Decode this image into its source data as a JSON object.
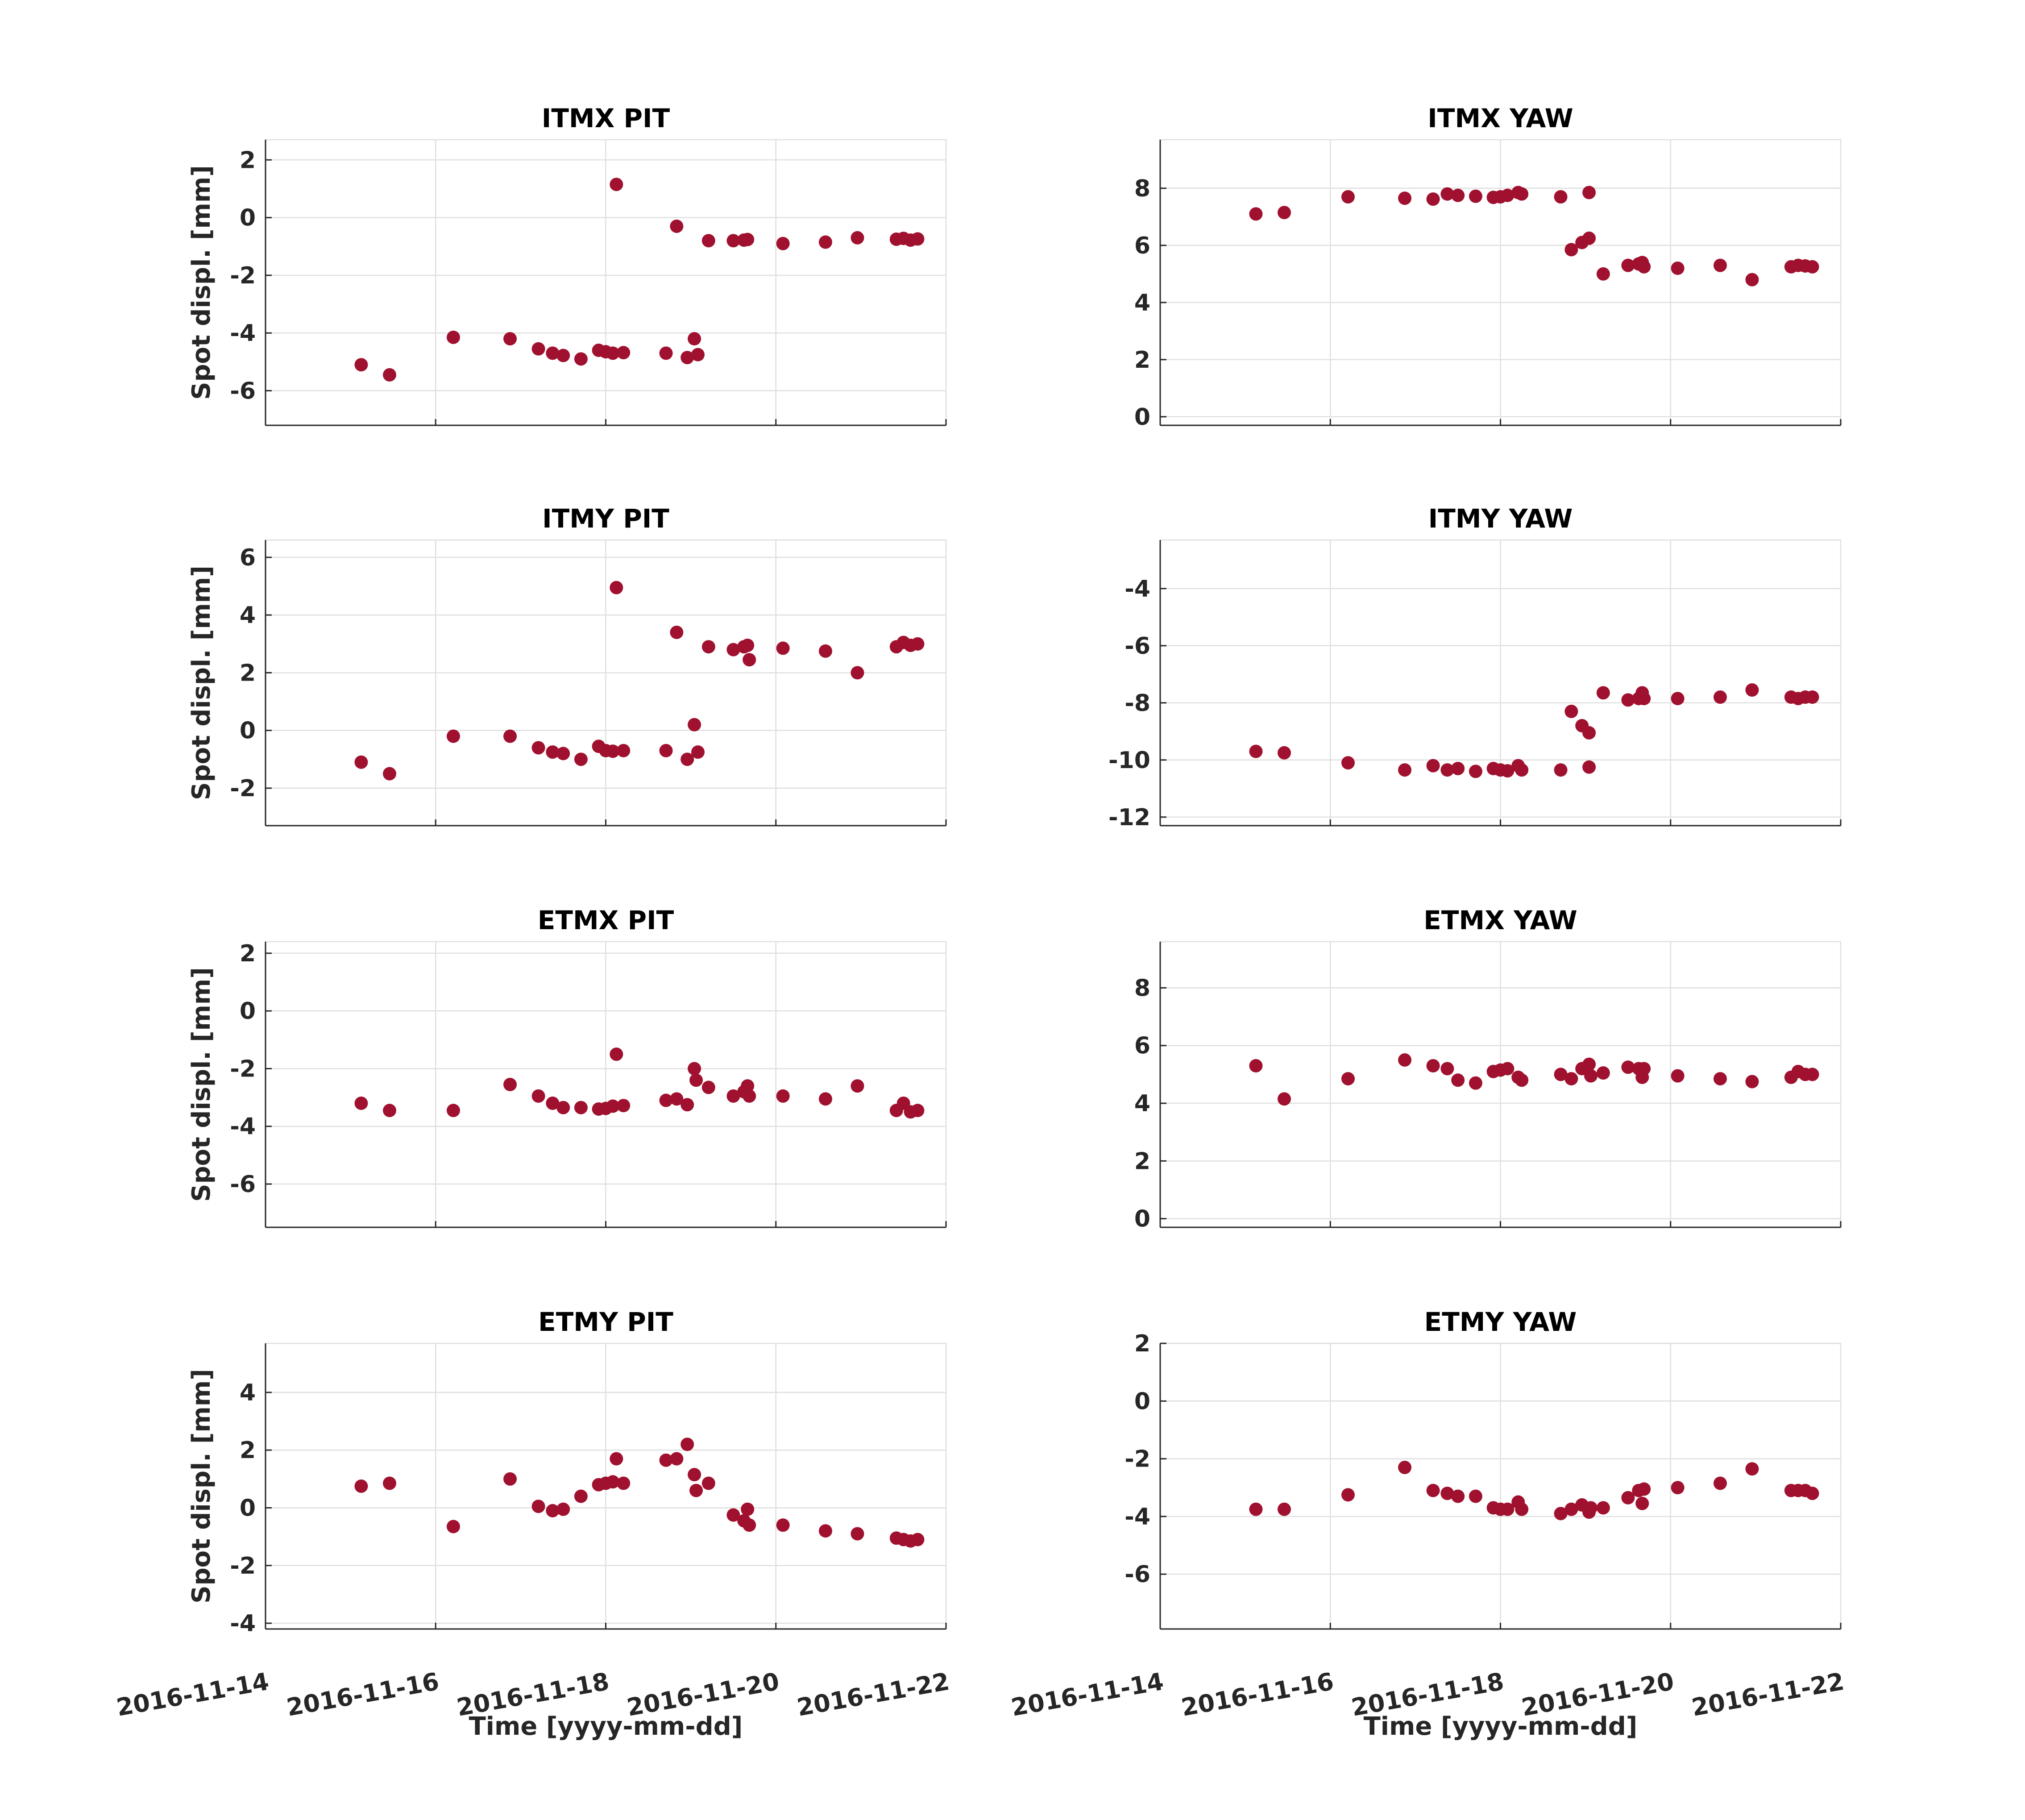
{
  "figure": {
    "marker_color": "#a0112f",
    "axis_color": "#262626",
    "grid_color": "#dfdfdf"
  },
  "chart_data": [
    {
      "type": "scatter",
      "title": "ITMX PIT",
      "ylabel": "Spot displ. [mm]",
      "xlabel": "",
      "xlim": [
        "2016-11-14",
        "2016-11-22"
      ],
      "xticks": [
        "2016-11-16",
        "2016-11-18",
        "2016-11-20",
        "2016-11-22"
      ],
      "ylim": [
        -7.2,
        2.7
      ],
      "yticks": [
        -6,
        -4,
        -2,
        0,
        2
      ],
      "grid": true,
      "points": [
        [
          "2016-11-15 03:00",
          -5.1
        ],
        [
          "2016-11-15 11:00",
          -5.45
        ],
        [
          "2016-11-16 05:00",
          -4.15
        ],
        [
          "2016-11-16 21:00",
          -4.2
        ],
        [
          "2016-11-17 05:00",
          -4.55
        ],
        [
          "2016-11-17 09:00",
          -4.7
        ],
        [
          "2016-11-17 12:00",
          -4.78
        ],
        [
          "2016-11-17 17:00",
          -4.9
        ],
        [
          "2016-11-17 22:00",
          -4.6
        ],
        [
          "2016-11-18 00:00",
          -4.65
        ],
        [
          "2016-11-18 02:00",
          -4.7
        ],
        [
          "2016-11-18 05:00",
          -4.68
        ],
        [
          "2016-11-18 03:00",
          1.15
        ],
        [
          "2016-11-18 17:00",
          -4.7
        ],
        [
          "2016-11-18 23:00",
          -4.85
        ],
        [
          "2016-11-19 02:00",
          -4.75
        ],
        [
          "2016-11-19 01:00",
          -4.2
        ],
        [
          "2016-11-18 20:00",
          -0.3
        ],
        [
          "2016-11-19 05:00",
          -0.8
        ],
        [
          "2016-11-19 12:00",
          -0.8
        ],
        [
          "2016-11-19 15:00",
          -0.78
        ],
        [
          "2016-11-19 16:00",
          -0.76
        ],
        [
          "2016-11-20 02:00",
          -0.9
        ],
        [
          "2016-11-20 14:00",
          -0.85
        ],
        [
          "2016-11-20 23:00",
          -0.7
        ],
        [
          "2016-11-21 10:00",
          -0.75
        ],
        [
          "2016-11-21 12:00",
          -0.72
        ],
        [
          "2016-11-21 14:00",
          -0.78
        ],
        [
          "2016-11-21 16:00",
          -0.74
        ]
      ]
    },
    {
      "type": "scatter",
      "title": "ITMX YAW",
      "ylabel": "",
      "xlabel": "",
      "xlim": [
        "2016-11-14",
        "2016-11-22"
      ],
      "xticks": [
        "2016-11-16",
        "2016-11-18",
        "2016-11-20",
        "2016-11-22"
      ],
      "ylim": [
        -0.3,
        9.7
      ],
      "yticks": [
        0,
        2,
        4,
        6,
        8
      ],
      "grid": true,
      "points": [
        [
          "2016-11-15 03:00",
          7.1
        ],
        [
          "2016-11-15 11:00",
          7.15
        ],
        [
          "2016-11-16 05:00",
          7.7
        ],
        [
          "2016-11-16 21:00",
          7.65
        ],
        [
          "2016-11-17 05:00",
          7.62
        ],
        [
          "2016-11-17 09:00",
          7.8
        ],
        [
          "2016-11-17 12:00",
          7.75
        ],
        [
          "2016-11-17 17:00",
          7.72
        ],
        [
          "2016-11-17 22:00",
          7.68
        ],
        [
          "2016-11-18 00:00",
          7.7
        ],
        [
          "2016-11-18 02:00",
          7.75
        ],
        [
          "2016-11-18 05:00",
          7.85
        ],
        [
          "2016-11-18 06:00",
          7.8
        ],
        [
          "2016-11-18 17:00",
          7.7
        ],
        [
          "2016-11-19 01:00",
          7.85
        ],
        [
          "2016-11-18 20:00",
          5.85
        ],
        [
          "2016-11-18 23:00",
          6.1
        ],
        [
          "2016-11-19 01:00",
          6.25
        ],
        [
          "2016-11-19 05:00",
          5.0
        ],
        [
          "2016-11-19 12:00",
          5.3
        ],
        [
          "2016-11-19 15:00",
          5.35
        ],
        [
          "2016-11-19 16:00",
          5.4
        ],
        [
          "2016-11-19 16:30",
          5.25
        ],
        [
          "2016-11-20 02:00",
          5.2
        ],
        [
          "2016-11-20 14:00",
          5.3
        ],
        [
          "2016-11-20 23:00",
          4.8
        ],
        [
          "2016-11-21 10:00",
          5.25
        ],
        [
          "2016-11-21 12:00",
          5.3
        ],
        [
          "2016-11-21 14:00",
          5.28
        ],
        [
          "2016-11-21 16:00",
          5.25
        ]
      ]
    },
    {
      "type": "scatter",
      "title": "ITMY PIT",
      "ylabel": "Spot displ. [mm]",
      "xlabel": "",
      "xlim": [
        "2016-11-14",
        "2016-11-22"
      ],
      "xticks": [
        "2016-11-16",
        "2016-11-18",
        "2016-11-20",
        "2016-11-22"
      ],
      "ylim": [
        -3.3,
        6.6
      ],
      "yticks": [
        -2,
        0,
        2,
        4,
        6
      ],
      "grid": true,
      "points": [
        [
          "2016-11-15 03:00",
          -1.1
        ],
        [
          "2016-11-15 11:00",
          -1.5
        ],
        [
          "2016-11-16 05:00",
          -0.2
        ],
        [
          "2016-11-16 21:00",
          -0.2
        ],
        [
          "2016-11-17 05:00",
          -0.6
        ],
        [
          "2016-11-17 09:00",
          -0.75
        ],
        [
          "2016-11-17 12:00",
          -0.8
        ],
        [
          "2016-11-17 17:00",
          -1.0
        ],
        [
          "2016-11-17 22:00",
          -0.55
        ],
        [
          "2016-11-18 00:00",
          -0.7
        ],
        [
          "2016-11-18 02:00",
          -0.72
        ],
        [
          "2016-11-18 05:00",
          -0.7
        ],
        [
          "2016-11-18 03:00",
          4.95
        ],
        [
          "2016-11-18 17:00",
          -0.7
        ],
        [
          "2016-11-18 23:00",
          -1.0
        ],
        [
          "2016-11-19 02:00",
          -0.75
        ],
        [
          "2016-11-19 01:00",
          0.2
        ],
        [
          "2016-11-18 20:00",
          3.4
        ],
        [
          "2016-11-19 05:00",
          2.9
        ],
        [
          "2016-11-19 12:00",
          2.8
        ],
        [
          "2016-11-19 15:00",
          2.9
        ],
        [
          "2016-11-19 16:00",
          2.95
        ],
        [
          "2016-11-19 16:30",
          2.45
        ],
        [
          "2016-11-20 02:00",
          2.85
        ],
        [
          "2016-11-20 14:00",
          2.75
        ],
        [
          "2016-11-20 23:00",
          2.0
        ],
        [
          "2016-11-21 10:00",
          2.9
        ],
        [
          "2016-11-21 12:00",
          3.05
        ],
        [
          "2016-11-21 14:00",
          2.95
        ],
        [
          "2016-11-21 16:00",
          3.0
        ]
      ]
    },
    {
      "type": "scatter",
      "title": "ITMY YAW",
      "ylabel": "",
      "xlabel": "",
      "xlim": [
        "2016-11-14",
        "2016-11-22"
      ],
      "xticks": [
        "2016-11-16",
        "2016-11-18",
        "2016-11-20",
        "2016-11-22"
      ],
      "ylim": [
        -12.3,
        -2.3
      ],
      "yticks": [
        -12,
        -10,
        -8,
        -6,
        -4
      ],
      "grid": true,
      "points": [
        [
          "2016-11-15 03:00",
          -9.7
        ],
        [
          "2016-11-15 11:00",
          -9.75
        ],
        [
          "2016-11-16 05:00",
          -10.1
        ],
        [
          "2016-11-16 21:00",
          -10.35
        ],
        [
          "2016-11-17 05:00",
          -10.2
        ],
        [
          "2016-11-17 09:00",
          -10.35
        ],
        [
          "2016-11-17 12:00",
          -10.3
        ],
        [
          "2016-11-17 17:00",
          -10.4
        ],
        [
          "2016-11-17 22:00",
          -10.3
        ],
        [
          "2016-11-18 00:00",
          -10.35
        ],
        [
          "2016-11-18 02:00",
          -10.38
        ],
        [
          "2016-11-18 05:00",
          -10.2
        ],
        [
          "2016-11-18 06:00",
          -10.35
        ],
        [
          "2016-11-18 17:00",
          -10.35
        ],
        [
          "2016-11-19 01:00",
          -10.25
        ],
        [
          "2016-11-18 20:00",
          -8.3
        ],
        [
          "2016-11-18 23:00",
          -8.8
        ],
        [
          "2016-11-19 01:00",
          -9.05
        ],
        [
          "2016-11-19 05:00",
          -7.65
        ],
        [
          "2016-11-19 12:00",
          -7.9
        ],
        [
          "2016-11-19 15:00",
          -7.85
        ],
        [
          "2016-11-19 16:00",
          -7.65
        ],
        [
          "2016-11-19 16:30",
          -7.85
        ],
        [
          "2016-11-20 02:00",
          -7.85
        ],
        [
          "2016-11-20 14:00",
          -7.8
        ],
        [
          "2016-11-20 23:00",
          -7.55
        ],
        [
          "2016-11-21 10:00",
          -7.8
        ],
        [
          "2016-11-21 12:00",
          -7.85
        ],
        [
          "2016-11-21 14:00",
          -7.8
        ],
        [
          "2016-11-21 16:00",
          -7.8
        ]
      ]
    },
    {
      "type": "scatter",
      "title": "ETMX PIT",
      "ylabel": "Spot displ. [mm]",
      "xlabel": "",
      "xlim": [
        "2016-11-14",
        "2016-11-22"
      ],
      "xticks": [
        "2016-11-16",
        "2016-11-18",
        "2016-11-20",
        "2016-11-22"
      ],
      "ylim": [
        -7.5,
        2.4
      ],
      "yticks": [
        -6,
        -4,
        -2,
        0,
        2
      ],
      "grid": true,
      "points": [
        [
          "2016-11-15 03:00",
          -3.2
        ],
        [
          "2016-11-15 11:00",
          -3.45
        ],
        [
          "2016-11-16 05:00",
          -3.45
        ],
        [
          "2016-11-16 21:00",
          -2.55
        ],
        [
          "2016-11-17 05:00",
          -2.95
        ],
        [
          "2016-11-17 09:00",
          -3.2
        ],
        [
          "2016-11-17 12:00",
          -3.35
        ],
        [
          "2016-11-17 17:00",
          -3.35
        ],
        [
          "2016-11-17 22:00",
          -3.4
        ],
        [
          "2016-11-18 00:00",
          -3.38
        ],
        [
          "2016-11-18 02:00",
          -3.3
        ],
        [
          "2016-11-18 05:00",
          -3.28
        ],
        [
          "2016-11-18 03:00",
          -1.5
        ],
        [
          "2016-11-18 17:00",
          -3.1
        ],
        [
          "2016-11-18 20:00",
          -3.05
        ],
        [
          "2016-11-18 23:00",
          -3.25
        ],
        [
          "2016-11-19 01:00",
          -2.0
        ],
        [
          "2016-11-19 01:30",
          -2.4
        ],
        [
          "2016-11-19 05:00",
          -2.65
        ],
        [
          "2016-11-19 12:00",
          -2.95
        ],
        [
          "2016-11-19 15:00",
          -2.8
        ],
        [
          "2016-11-19 16:00",
          -2.6
        ],
        [
          "2016-11-19 16:30",
          -2.95
        ],
        [
          "2016-11-20 02:00",
          -2.95
        ],
        [
          "2016-11-20 14:00",
          -3.05
        ],
        [
          "2016-11-20 23:00",
          -2.6
        ],
        [
          "2016-11-21 10:00",
          -3.45
        ],
        [
          "2016-11-21 12:00",
          -3.2
        ],
        [
          "2016-11-21 14:00",
          -3.5
        ],
        [
          "2016-11-21 16:00",
          -3.45
        ]
      ]
    },
    {
      "type": "scatter",
      "title": "ETMX YAW",
      "ylabel": "",
      "xlabel": "",
      "xlim": [
        "2016-11-14",
        "2016-11-22"
      ],
      "xticks": [
        "2016-11-16",
        "2016-11-18",
        "2016-11-20",
        "2016-11-22"
      ],
      "ylim": [
        -0.3,
        9.6
      ],
      "yticks": [
        0,
        2,
        4,
        6,
        8
      ],
      "grid": true,
      "points": [
        [
          "2016-11-15 03:00",
          5.3
        ],
        [
          "2016-11-15 11:00",
          4.15
        ],
        [
          "2016-11-16 05:00",
          4.85
        ],
        [
          "2016-11-16 21:00",
          5.5
        ],
        [
          "2016-11-17 05:00",
          5.3
        ],
        [
          "2016-11-17 09:00",
          5.2
        ],
        [
          "2016-11-17 12:00",
          4.8
        ],
        [
          "2016-11-17 17:00",
          4.7
        ],
        [
          "2016-11-17 22:00",
          5.1
        ],
        [
          "2016-11-18 00:00",
          5.15
        ],
        [
          "2016-11-18 02:00",
          5.2
        ],
        [
          "2016-11-18 05:00",
          4.9
        ],
        [
          "2016-11-18 06:00",
          4.8
        ],
        [
          "2016-11-18 17:00",
          5.0
        ],
        [
          "2016-11-18 20:00",
          4.85
        ],
        [
          "2016-11-18 23:00",
          5.2
        ],
        [
          "2016-11-19 01:00",
          5.35
        ],
        [
          "2016-11-19 01:30",
          4.95
        ],
        [
          "2016-11-19 05:00",
          5.05
        ],
        [
          "2016-11-19 12:00",
          5.25
        ],
        [
          "2016-11-19 15:00",
          5.2
        ],
        [
          "2016-11-19 16:00",
          4.9
        ],
        [
          "2016-11-19 16:30",
          5.2
        ],
        [
          "2016-11-20 02:00",
          4.95
        ],
        [
          "2016-11-20 14:00",
          4.85
        ],
        [
          "2016-11-20 23:00",
          4.75
        ],
        [
          "2016-11-21 10:00",
          4.9
        ],
        [
          "2016-11-21 12:00",
          5.1
        ],
        [
          "2016-11-21 14:00",
          5.0
        ],
        [
          "2016-11-21 16:00",
          5.0
        ]
      ]
    },
    {
      "type": "scatter",
      "title": "ETMY PIT",
      "ylabel": "Spot displ. [mm]",
      "xlabel": "Time [yyyy-mm-dd]",
      "xlim": [
        "2016-11-14",
        "2016-11-22"
      ],
      "xticks": [
        "2016-11-14",
        "2016-11-16",
        "2016-11-18",
        "2016-11-20",
        "2016-11-22"
      ],
      "ylim": [
        -4.2,
        5.7
      ],
      "yticks": [
        -4,
        -2,
        0,
        2,
        4
      ],
      "grid": true,
      "points": [
        [
          "2016-11-15 03:00",
          0.75
        ],
        [
          "2016-11-15 11:00",
          0.85
        ],
        [
          "2016-11-16 05:00",
          -0.65
        ],
        [
          "2016-11-16 21:00",
          1.0
        ],
        [
          "2016-11-17 05:00",
          0.05
        ],
        [
          "2016-11-17 09:00",
          -0.1
        ],
        [
          "2016-11-17 12:00",
          -0.05
        ],
        [
          "2016-11-17 17:00",
          0.4
        ],
        [
          "2016-11-17 22:00",
          0.8
        ],
        [
          "2016-11-18 00:00",
          0.85
        ],
        [
          "2016-11-18 02:00",
          0.9
        ],
        [
          "2016-11-18 05:00",
          0.85
        ],
        [
          "2016-11-18 03:00",
          1.7
        ],
        [
          "2016-11-18 17:00",
          1.65
        ],
        [
          "2016-11-18 20:00",
          1.7
        ],
        [
          "2016-11-18 23:00",
          2.2
        ],
        [
          "2016-11-19 01:00",
          1.15
        ],
        [
          "2016-11-19 01:30",
          0.6
        ],
        [
          "2016-11-19 05:00",
          0.85
        ],
        [
          "2016-11-19 12:00",
          -0.25
        ],
        [
          "2016-11-19 15:00",
          -0.45
        ],
        [
          "2016-11-19 16:00",
          -0.05
        ],
        [
          "2016-11-19 16:30",
          -0.6
        ],
        [
          "2016-11-20 02:00",
          -0.6
        ],
        [
          "2016-11-20 14:00",
          -0.8
        ],
        [
          "2016-11-20 23:00",
          -0.9
        ],
        [
          "2016-11-21 10:00",
          -1.05
        ],
        [
          "2016-11-21 12:00",
          -1.1
        ],
        [
          "2016-11-21 14:00",
          -1.15
        ],
        [
          "2016-11-21 16:00",
          -1.1
        ]
      ]
    },
    {
      "type": "scatter",
      "title": "ETMY YAW",
      "ylabel": "",
      "xlabel": "Time [yyyy-mm-dd]",
      "xlim": [
        "2016-11-14",
        "2016-11-22"
      ],
      "xticks": [
        "2016-11-14",
        "2016-11-16",
        "2016-11-18",
        "2016-11-20",
        "2016-11-22"
      ],
      "ylim": [
        -7.9,
        2.0
      ],
      "yticks": [
        -6,
        -4,
        -2,
        0,
        2
      ],
      "grid": true,
      "points": [
        [
          "2016-11-15 03:00",
          -3.75
        ],
        [
          "2016-11-15 11:00",
          -3.75
        ],
        [
          "2016-11-16 05:00",
          -3.25
        ],
        [
          "2016-11-16 21:00",
          -2.3
        ],
        [
          "2016-11-17 05:00",
          -3.1
        ],
        [
          "2016-11-17 09:00",
          -3.2
        ],
        [
          "2016-11-17 12:00",
          -3.3
        ],
        [
          "2016-11-17 17:00",
          -3.3
        ],
        [
          "2016-11-17 22:00",
          -3.7
        ],
        [
          "2016-11-18 00:00",
          -3.75
        ],
        [
          "2016-11-18 02:00",
          -3.75
        ],
        [
          "2016-11-18 05:00",
          -3.5
        ],
        [
          "2016-11-18 06:00",
          -3.75
        ],
        [
          "2016-11-18 17:00",
          -3.9
        ],
        [
          "2016-11-18 20:00",
          -3.75
        ],
        [
          "2016-11-18 23:00",
          -3.6
        ],
        [
          "2016-11-19 01:00",
          -3.85
        ],
        [
          "2016-11-19 01:30",
          -3.7
        ],
        [
          "2016-11-19 05:00",
          -3.7
        ],
        [
          "2016-11-19 12:00",
          -3.35
        ],
        [
          "2016-11-19 15:00",
          -3.1
        ],
        [
          "2016-11-19 16:00",
          -3.55
        ],
        [
          "2016-11-19 16:30",
          -3.05
        ],
        [
          "2016-11-20 02:00",
          -3.0
        ],
        [
          "2016-11-20 14:00",
          -2.85
        ],
        [
          "2016-11-20 23:00",
          -2.35
        ],
        [
          "2016-11-21 10:00",
          -3.1
        ],
        [
          "2016-11-21 12:00",
          -3.1
        ],
        [
          "2016-11-21 14:00",
          -3.1
        ],
        [
          "2016-11-21 16:00",
          -3.2
        ]
      ]
    }
  ]
}
